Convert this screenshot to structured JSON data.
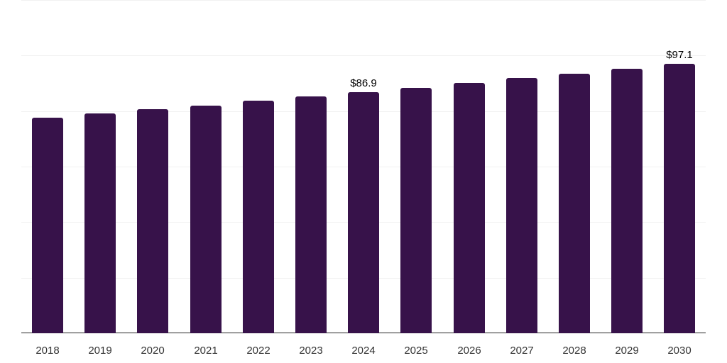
{
  "chart_data": {
    "type": "bar",
    "title": "",
    "xlabel": "",
    "ylabel": "",
    "ylim": [
      0,
      120
    ],
    "grid": true,
    "legend": null,
    "categories": [
      "2018",
      "2019",
      "2020",
      "2021",
      "2022",
      "2023",
      "2024",
      "2025",
      "2026",
      "2027",
      "2028",
      "2029",
      "2030"
    ],
    "values": [
      77.7,
      79.2,
      80.8,
      82.0,
      83.8,
      85.4,
      86.9,
      88.4,
      90.2,
      91.8,
      93.5,
      95.3,
      97.1
    ],
    "data_labels": [
      {
        "category": "2024",
        "text": "$86.9"
      },
      {
        "category": "2030",
        "text": "$97.1"
      }
    ],
    "bar_color": "#37124a"
  }
}
